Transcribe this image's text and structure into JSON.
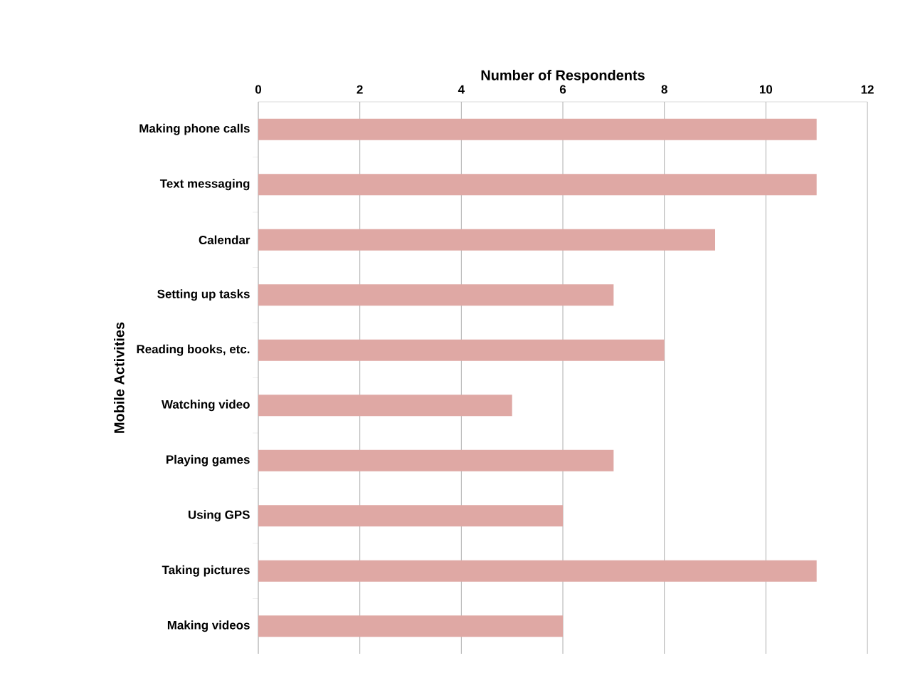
{
  "chart_data": {
    "type": "bar",
    "orientation": "horizontal",
    "xlabel": "Number of Respondents",
    "ylabel": "Mobile Activities",
    "categories": [
      "Making phone calls",
      "Text messaging",
      "Calendar",
      "Setting up tasks",
      "Reading books, etc.",
      "Watching video",
      "Playing games",
      "Using GPS",
      "Taking pictures",
      "Making videos"
    ],
    "values": [
      11,
      11,
      9,
      7,
      8,
      5,
      7,
      6,
      11,
      6
    ],
    "color": "#dfa8a4",
    "xlim": [
      0,
      12
    ],
    "xticks": [
      0,
      2,
      4,
      6,
      8,
      10,
      12
    ],
    "grid": "x"
  }
}
